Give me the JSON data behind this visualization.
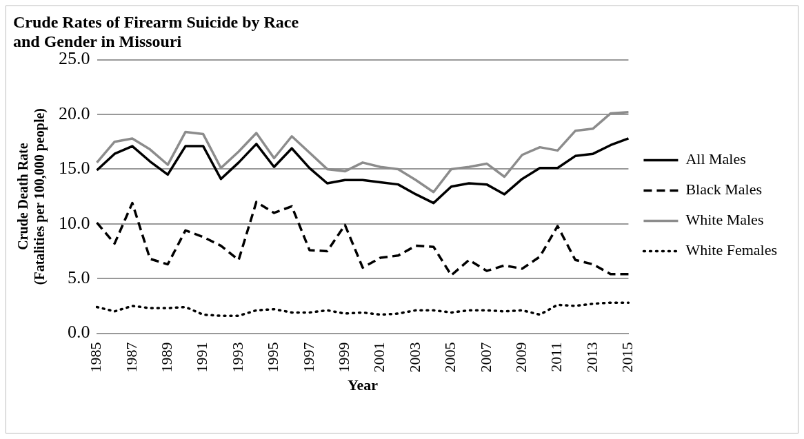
{
  "chart_data": {
    "type": "line",
    "title": "Crude Rates of Firearm Suicide by Race\nand Gender in Missouri",
    "xlabel": "Year",
    "ylabel": "Crude Death Rate\n(Fatalities per 100,000 people)",
    "categories": [
      "1985",
      null,
      "1987",
      null,
      "1989",
      null,
      "1991",
      null,
      "1993",
      null,
      "1995",
      null,
      "1997",
      null,
      "1999",
      null,
      "2001",
      null,
      "2003",
      null,
      "2005",
      null,
      "2007",
      null,
      "2009",
      null,
      "2011",
      null,
      "2013",
      null,
      "2015"
    ],
    "series": [
      {
        "name": "All Males",
        "color": "#000000",
        "line_style": "solid",
        "values": [
          14.9,
          16.4,
          17.1,
          15.7,
          14.5,
          17.1,
          17.1,
          14.1,
          15.6,
          17.3,
          15.2,
          16.9,
          15.1,
          13.7,
          14.0,
          14.0,
          13.8,
          13.6,
          12.7,
          11.9,
          13.4,
          13.7,
          13.6,
          12.7,
          14.1,
          15.1,
          15.1,
          16.2,
          16.4,
          17.2,
          17.8
        ]
      },
      {
        "name": "Black Males",
        "color": "#000000",
        "line_style": "dashed",
        "values": [
          10.1,
          8.2,
          11.9,
          6.8,
          6.3,
          9.4,
          8.8,
          8.0,
          6.7,
          12.0,
          11.0,
          11.6,
          7.6,
          7.5,
          9.9,
          6.0,
          6.9,
          7.1,
          8.0,
          7.9,
          5.3,
          6.7,
          5.7,
          6.2,
          5.9,
          7.0,
          9.8,
          6.7,
          6.3,
          5.4,
          5.4
        ]
      },
      {
        "name": "White Males",
        "color": "#8c8c8c",
        "line_style": "solid",
        "values": [
          15.6,
          17.5,
          17.8,
          16.8,
          15.4,
          18.4,
          18.2,
          15.1,
          16.6,
          18.3,
          16.0,
          18.0,
          16.5,
          15.0,
          14.8,
          15.6,
          15.2,
          15.0,
          14.0,
          12.9,
          15.0,
          15.2,
          15.5,
          14.3,
          16.3,
          17.0,
          16.7,
          18.5,
          18.7,
          20.1,
          20.2
        ]
      },
      {
        "name": "White Females",
        "color": "#000000",
        "line_style": "dotted",
        "values": [
          2.4,
          2.0,
          2.5,
          2.3,
          2.3,
          2.4,
          1.7,
          1.6,
          1.6,
          2.1,
          2.2,
          1.9,
          1.9,
          2.1,
          1.8,
          1.9,
          1.7,
          1.8,
          2.1,
          2.1,
          1.9,
          2.1,
          2.1,
          2.0,
          2.1,
          1.7,
          2.6,
          2.5,
          2.7,
          2.8,
          2.8
        ]
      }
    ],
    "ylim": [
      0,
      25
    ],
    "yticks": [
      {
        "value": 0,
        "label": "0.0"
      },
      {
        "value": 5,
        "label": "5.0"
      },
      {
        "value": 10,
        "label": "10.0"
      },
      {
        "value": 15,
        "label": "15.0"
      },
      {
        "value": 20,
        "label": "20.0"
      },
      {
        "value": 25,
        "label": "25.0"
      }
    ],
    "grid": "y",
    "legend": "right",
    "marker": "none"
  }
}
